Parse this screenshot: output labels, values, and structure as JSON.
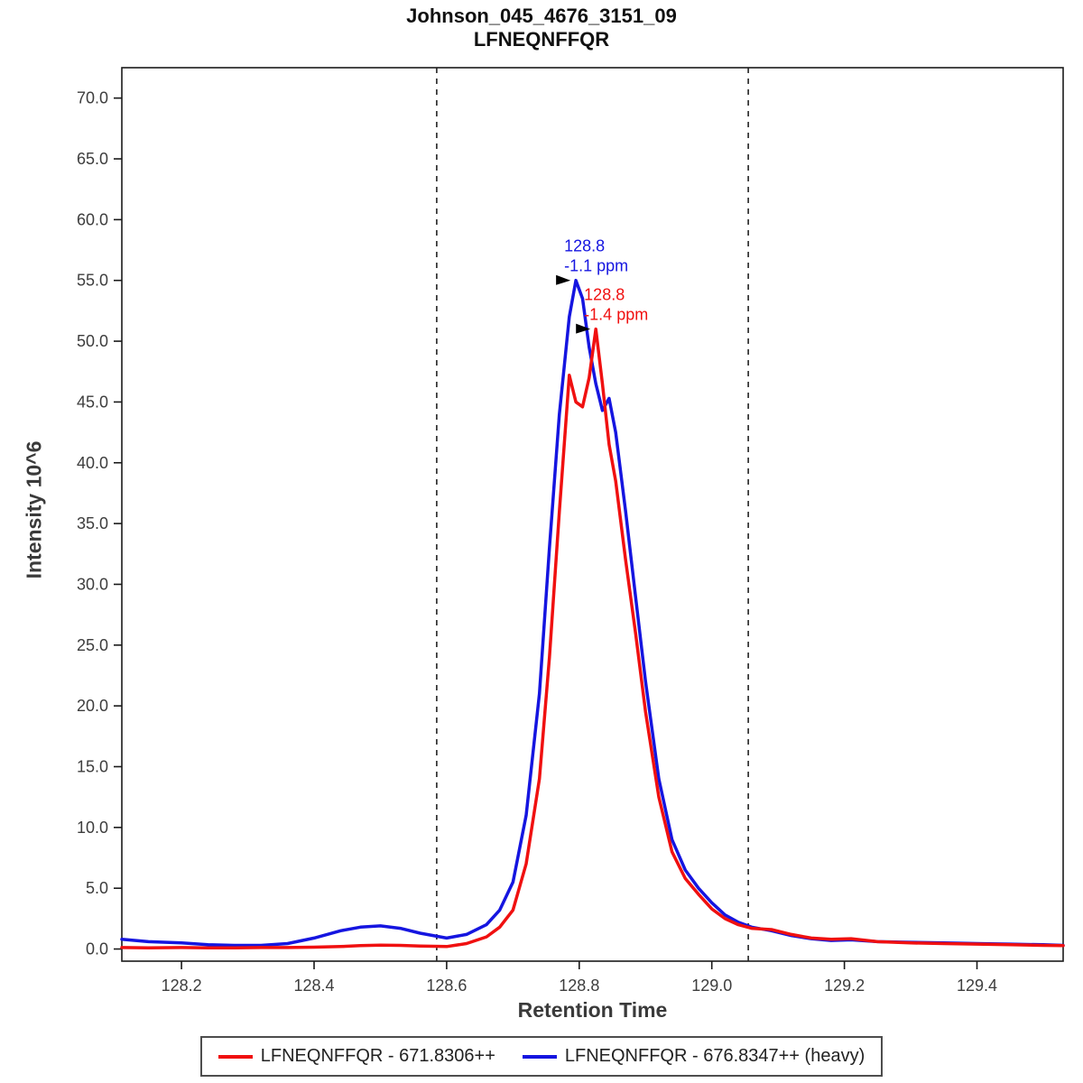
{
  "header": {
    "title": "Johnson_045_4676_3151_09",
    "subtitle": "LFNEQNFFQR"
  },
  "chart_data": {
    "type": "line",
    "title": "Johnson_045_4676_3151_09",
    "subtitle": "LFNEQNFFQR",
    "xlabel": "Retention Time",
    "ylabel": "Intensity 10^6",
    "xlim": [
      128.11,
      129.53
    ],
    "ylim": [
      -1,
      72.5
    ],
    "x_ticks": [
      128.2,
      128.4,
      128.6,
      128.8,
      129.0,
      129.2,
      129.4
    ],
    "y_ticks": [
      0,
      5,
      10,
      15,
      20,
      25,
      30,
      35,
      40,
      45,
      50,
      55,
      60,
      65,
      70
    ],
    "grid": false,
    "legend_position": "bottom",
    "peak_boundaries": [
      128.585,
      129.055
    ],
    "boundary_style": "dashed",
    "x": [
      128.11,
      128.15,
      128.2,
      128.24,
      128.28,
      128.32,
      128.36,
      128.4,
      128.44,
      128.47,
      128.5,
      128.53,
      128.56,
      128.6,
      128.63,
      128.66,
      128.68,
      128.7,
      128.72,
      128.74,
      128.755,
      128.77,
      128.785,
      128.795,
      128.805,
      128.815,
      128.825,
      128.835,
      128.845,
      128.855,
      128.87,
      128.885,
      128.9,
      128.92,
      128.94,
      128.96,
      128.98,
      129.0,
      129.02,
      129.04,
      129.06,
      129.09,
      129.12,
      129.15,
      129.18,
      129.21,
      129.25,
      129.3,
      129.35,
      129.4,
      129.45,
      129.5,
      129.53
    ],
    "series": [
      {
        "name": "LFNEQNFFQR - 671.8306++",
        "color": "#f01010",
        "z": 1,
        "values": [
          0.12,
          0.1,
          0.12,
          0.1,
          0.1,
          0.12,
          0.12,
          0.15,
          0.2,
          0.28,
          0.32,
          0.3,
          0.25,
          0.2,
          0.45,
          1.0,
          1.8,
          3.2,
          7,
          14,
          24,
          36,
          47.2,
          45.0,
          44.6,
          47.0,
          51.0,
          46.5,
          41.5,
          38.5,
          32,
          26,
          19.5,
          12.5,
          8,
          5.8,
          4.5,
          3.3,
          2.5,
          2.0,
          1.7,
          1.6,
          1.2,
          0.9,
          0.8,
          0.85,
          0.6,
          0.5,
          0.45,
          0.4,
          0.35,
          0.3,
          0.28
        ]
      },
      {
        "name": "LFNEQNFFQR - 676.8347++ (heavy)",
        "color": "#1515e0",
        "z": 0,
        "values": [
          0.8,
          0.6,
          0.5,
          0.35,
          0.3,
          0.3,
          0.45,
          0.9,
          1.5,
          1.8,
          1.9,
          1.7,
          1.3,
          0.9,
          1.2,
          2.0,
          3.2,
          5.5,
          11,
          21,
          33,
          44,
          52,
          55,
          53.5,
          49.5,
          46.5,
          44.3,
          45.3,
          42.5,
          36,
          29,
          22,
          14,
          9,
          6.5,
          5.0,
          3.8,
          2.8,
          2.2,
          1.8,
          1.5,
          1.1,
          0.85,
          0.7,
          0.75,
          0.6,
          0.55,
          0.5,
          0.45,
          0.4,
          0.35,
          0.3
        ]
      }
    ],
    "annotations": [
      {
        "series": "LFNEQNFFQR - 676.8347++ (heavy)",
        "x": 128.795,
        "y": 55,
        "lines": [
          "128.8",
          "-1.1 ppm"
        ],
        "color": "#1515e0",
        "arrow_color": "#000000"
      },
      {
        "series": "LFNEQNFFQR - 671.8306++",
        "x": 128.825,
        "y": 51,
        "lines": [
          "128.8",
          "-1.4 ppm"
        ],
        "color": "#f01010",
        "arrow_color": "#000000"
      }
    ],
    "axis_color": "#1a1a1a",
    "tick_label_color": "#3d3d3d"
  }
}
